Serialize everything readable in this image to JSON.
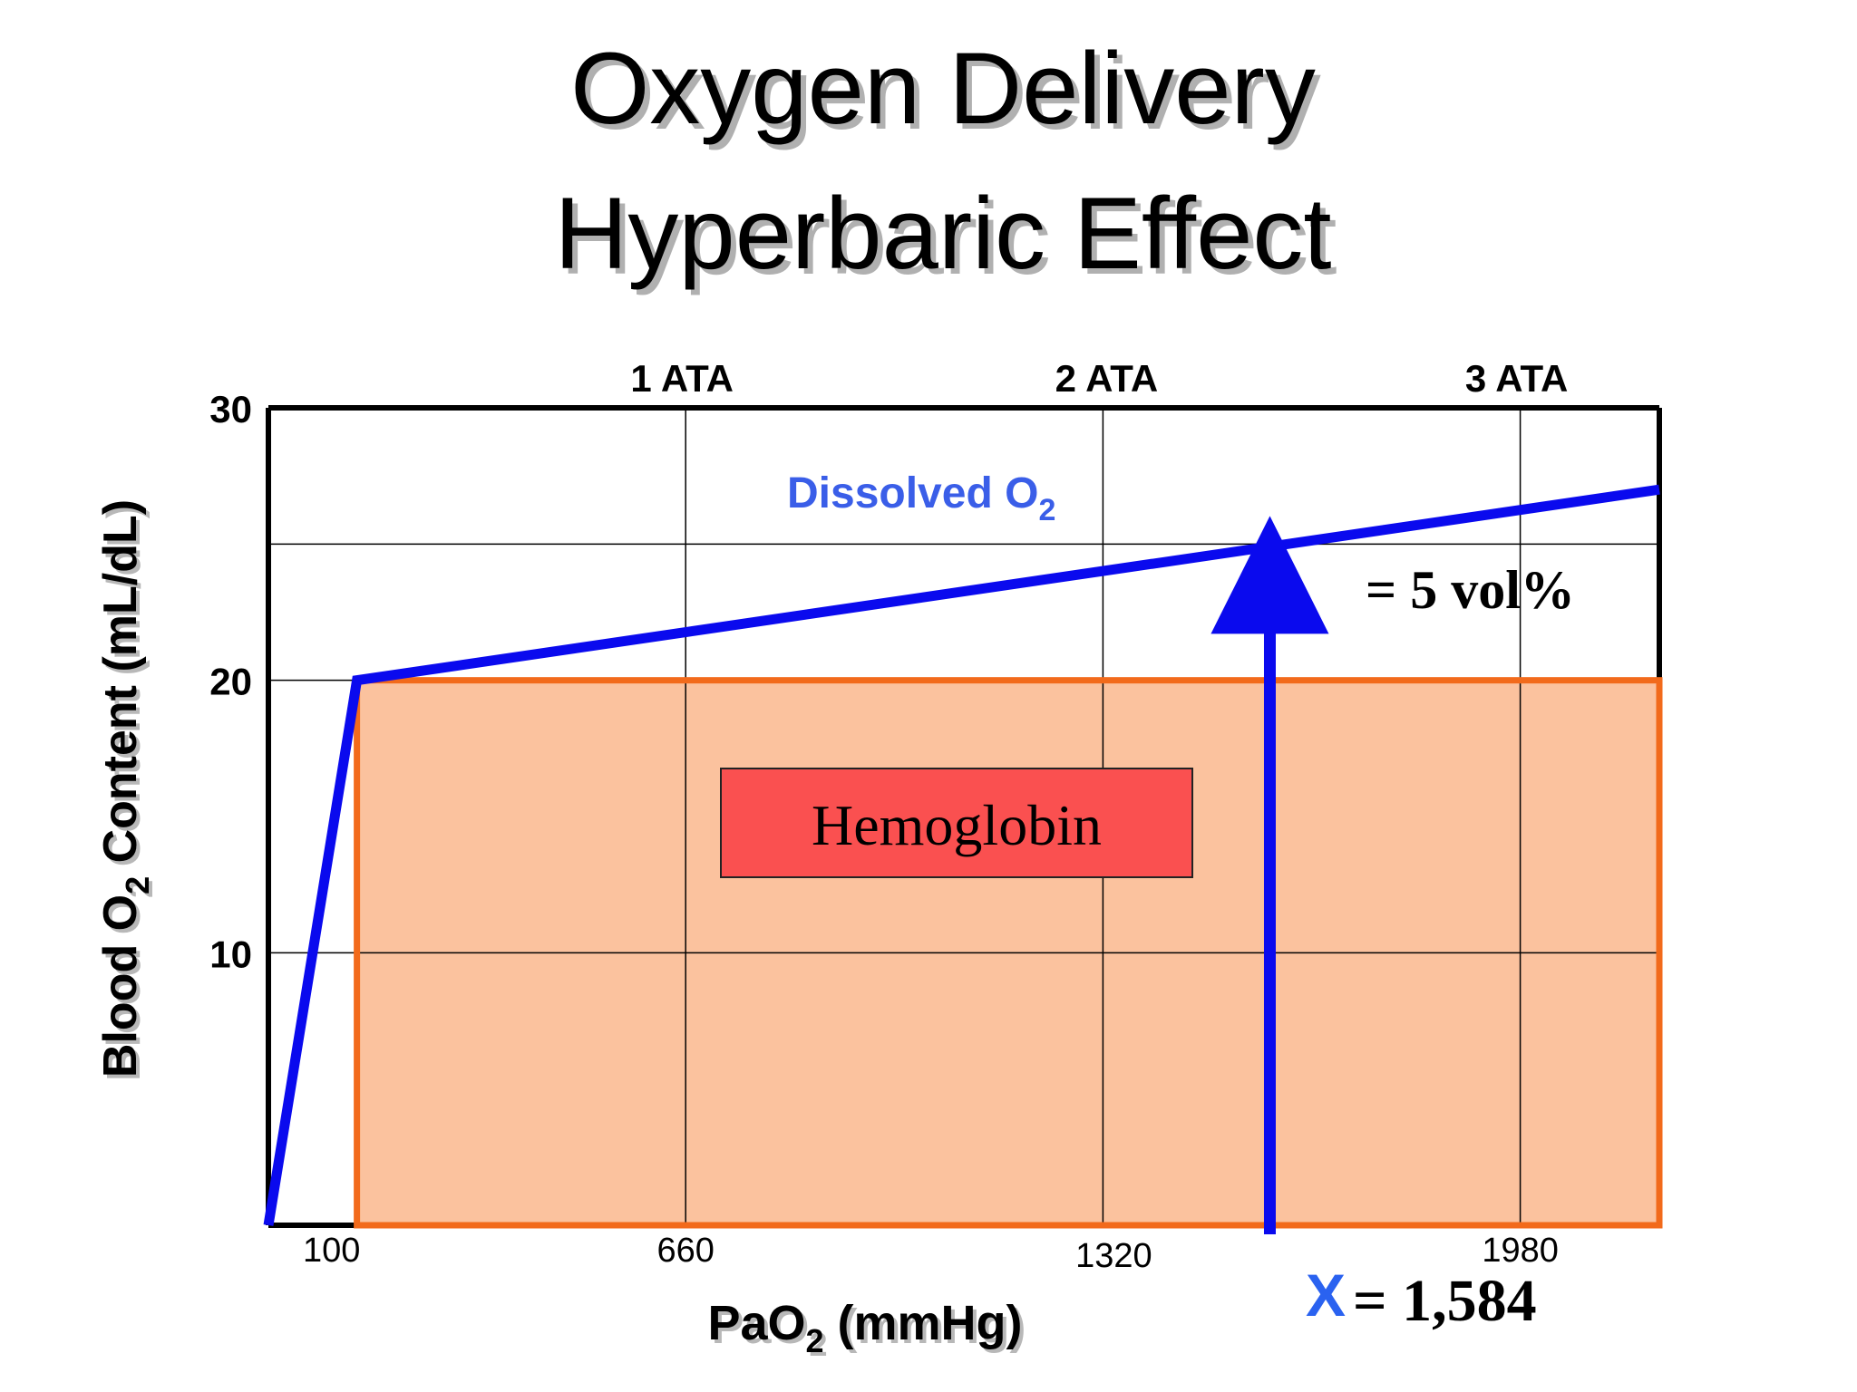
{
  "chart_data": {
    "type": "line",
    "title": "Oxygen Delivery",
    "subtitle": "Hyperbaric Effect",
    "xlabel": {
      "main": "PaO",
      "sub": "2",
      "rest": " (mmHg)"
    },
    "ylabel": {
      "main": "Blood O",
      "sub": "2",
      "rest": " Content (mL/dL)"
    },
    "xlim": [
      0,
      2200
    ],
    "ylim": [
      0,
      30
    ],
    "grid": true,
    "x_ticks": [
      {
        "value": 100,
        "label": "100"
      },
      {
        "value": 660,
        "label": "660"
      },
      {
        "value": 1320,
        "label": "1320"
      },
      {
        "value": 1980,
        "label": "1980"
      }
    ],
    "y_ticks": [
      {
        "value": 10,
        "label": "10"
      },
      {
        "value": 20,
        "label": "20"
      },
      {
        "value": 30,
        "label": "30"
      }
    ],
    "top_ticks": [
      {
        "value": 660,
        "label": "1 ATA"
      },
      {
        "value": 1320,
        "label": "2 ATA"
      },
      {
        "value": 1980,
        "label": "3 ATA"
      }
    ],
    "series": [
      {
        "name": "Dissolved O2",
        "label_main": "Dissolved O",
        "label_sub": "2",
        "color": "#0a0aee",
        "label_color": "#3a5ee8",
        "points": [
          [
            0,
            0
          ],
          [
            140,
            20
          ],
          [
            2200,
            27
          ]
        ]
      }
    ],
    "hemoglobin_region": {
      "label": "Hemoglobin",
      "x_start": 140,
      "x_end": 2200,
      "y": 20,
      "fill": "#fbc29e",
      "stroke": "#f26a1b",
      "box_fill": "#fa5050"
    },
    "annotation": {
      "x": 1584,
      "y_top": 25,
      "arrow_color": "#0a0aee",
      "delta_label": "= 5 vol%",
      "x_symbol": "X",
      "x_label": "= 1,584"
    }
  }
}
